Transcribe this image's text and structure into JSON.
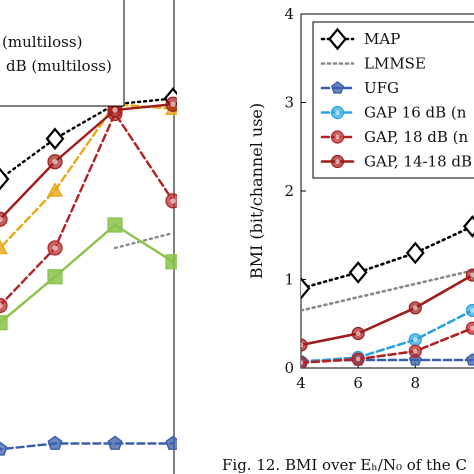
{
  "chart_data": [
    {
      "type": "line",
      "title": "",
      "xlabel": "",
      "ylabel": "",
      "x": [
        1,
        2,
        3,
        4,
        5
      ],
      "legend_fragments": [
        "(multiloss)",
        "dB (multiloss)"
      ],
      "series": [
        {
          "color": "#000000",
          "dash": "dotted",
          "marker": "diamond",
          "values": [
            2.2,
            1.6,
            1.25,
            0.95,
            0.9
          ]
        },
        {
          "color": "#888888",
          "dash": "dotted",
          "marker": "none",
          "values": [
            null,
            null,
            null,
            2.2,
            2.07
          ]
        },
        {
          "color": "#3a5faa",
          "dash": "dashed",
          "marker": "pentagon",
          "values": [
            4.0,
            3.95,
            3.9,
            3.9,
            3.9
          ]
        },
        {
          "color": "#e6a817",
          "dash": "dashed",
          "marker": "triangle",
          "values": [
            2.85,
            2.2,
            1.7,
            0.95,
            0.99
          ]
        },
        {
          "color": "#8ac24a",
          "dash": "solid",
          "marker": "square",
          "values": [
            3.2,
            2.85,
            2.45,
            2.0,
            2.32
          ]
        },
        {
          "color": "#b22222",
          "dash": "dashed",
          "marker": "circle",
          "values": [
            3.4,
            2.7,
            2.2,
            1.03,
            1.79
          ]
        },
        {
          "color": "#a01c1c",
          "dash": "solid",
          "marker": "circle",
          "values": [
            2.4,
            1.95,
            1.45,
            1.0,
            0.95
          ]
        }
      ]
    },
    {
      "type": "line",
      "title": "",
      "xlabel": "",
      "ylabel": "BMI (bit/channel use)",
      "xticks": [
        "4",
        "6",
        "8"
      ],
      "yticks": [
        "0",
        "1",
        "2",
        "3",
        "4"
      ],
      "xlim": [
        4,
        10.3
      ],
      "ylim": [
        0,
        4
      ],
      "grid": false,
      "legend": "top-right",
      "series": [
        {
          "name": "MAP",
          "color": "#000000",
          "dash": "dotted",
          "marker": "diamond",
          "x": [
            4,
            6,
            8,
            10
          ],
          "values": [
            0.9,
            1.08,
            1.3,
            1.6
          ]
        },
        {
          "name": "LMMSE",
          "color": "#888888",
          "dash": "dotted",
          "marker": "none",
          "x": [
            4,
            6,
            8,
            10
          ],
          "values": [
            0.65,
            0.8,
            0.95,
            1.1
          ]
        },
        {
          "name": "UFG",
          "color": "#3a5faa",
          "dash": "dashed",
          "marker": "pentagon",
          "x": [
            4,
            6,
            8,
            10
          ],
          "values": [
            0.08,
            0.09,
            0.09,
            0.09
          ]
        },
        {
          "name": "GAP 16 dB (n",
          "color": "#29a3e0",
          "dash": "dashed",
          "marker": "circle",
          "x": [
            4,
            6,
            8,
            10
          ],
          "values": [
            0.07,
            0.12,
            0.32,
            0.65
          ]
        },
        {
          "name": "GAP, 18 dB (n",
          "color": "#b22222",
          "dash": "dashed",
          "marker": "circle",
          "x": [
            4,
            6,
            8,
            10
          ],
          "values": [
            0.06,
            0.1,
            0.19,
            0.45
          ]
        },
        {
          "name": "GAP, 14-18 dB",
          "color": "#a01c1c",
          "dash": "solid",
          "marker": "circle",
          "x": [
            4,
            6,
            8,
            10
          ],
          "values": [
            0.26,
            0.39,
            0.68,
            1.05
          ]
        }
      ]
    }
  ],
  "caption": "Fig. 12.  BMI over Eₕ/N₀ of the C"
}
